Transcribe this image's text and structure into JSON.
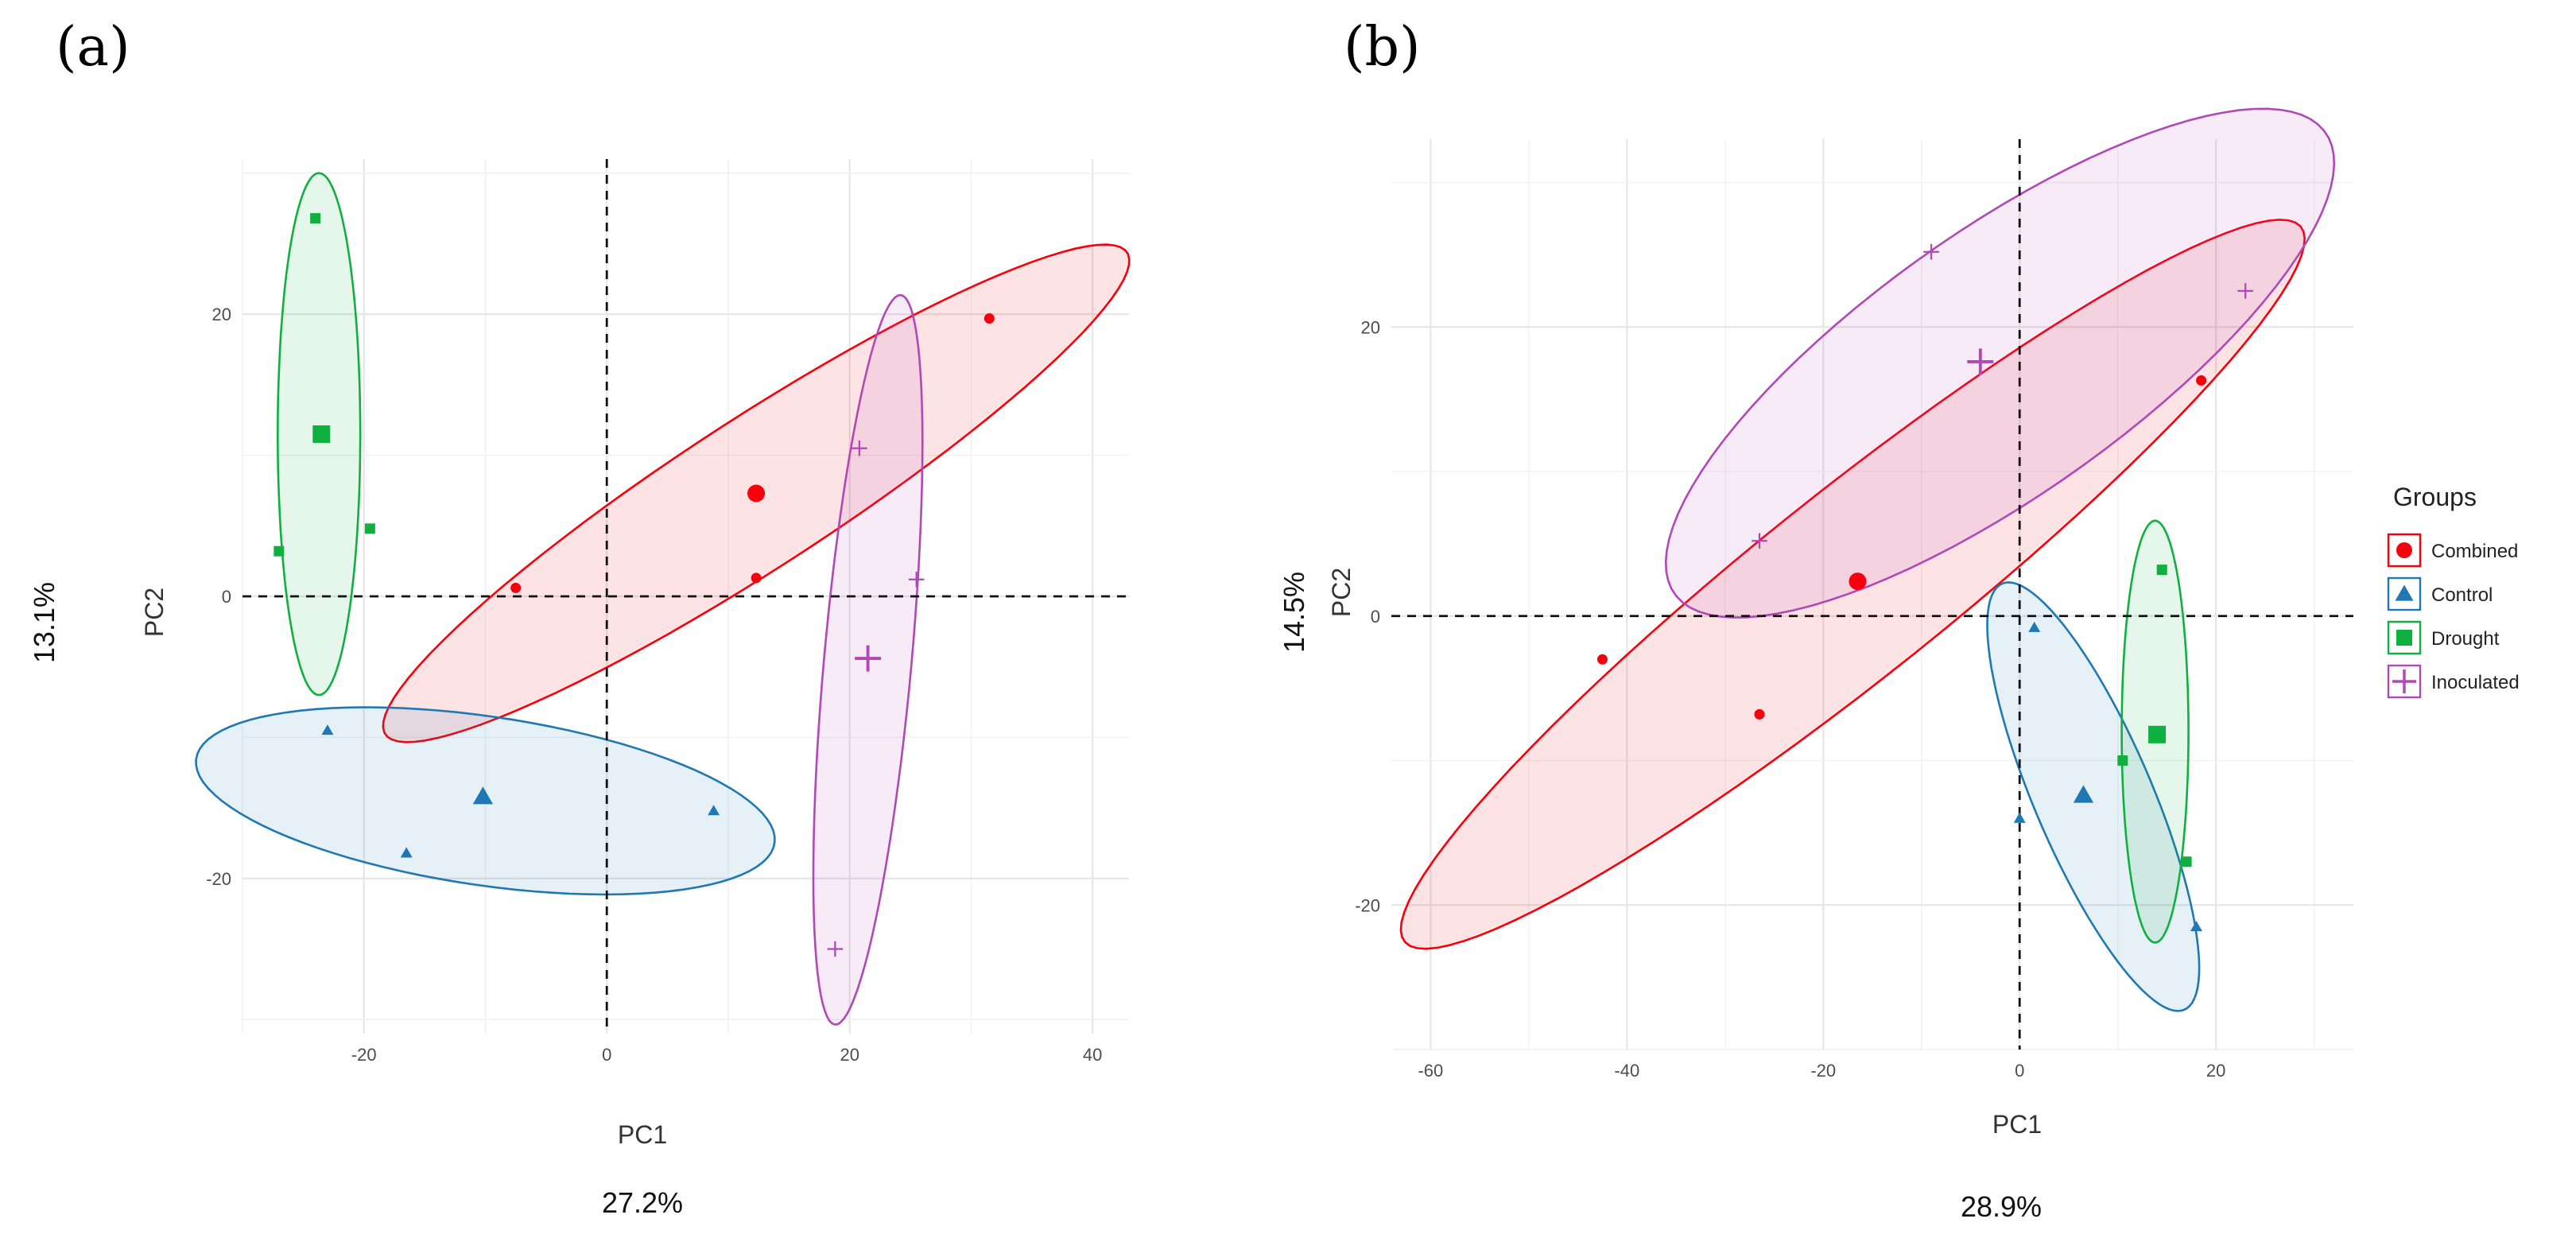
{
  "legend": {
    "title": "Groups",
    "entries": [
      {
        "label": "Combined",
        "color": "#f8000b",
        "shape": "circle"
      },
      {
        "label": "Control",
        "color": "#1f78b4",
        "shape": "triangle"
      },
      {
        "label": "Drought",
        "color": "#10b040",
        "shape": "square"
      },
      {
        "label": "Inoculated",
        "color": "#b048b5",
        "shape": "plus"
      }
    ]
  },
  "chart_data": [
    {
      "panel_label": "(a)",
      "type": "scatter",
      "xlabel": "PC1",
      "ylabel": "PC2",
      "x_variance_label": "27.2%",
      "y_variance_label": "13.1%",
      "xlim": [
        -30,
        43
      ],
      "ylim": [
        -31,
        31
      ],
      "xticks": [
        -20,
        0,
        20,
        40
      ],
      "yticks": [
        -20,
        0,
        20
      ],
      "reference_lines": {
        "x": 0,
        "y": 0,
        "style": "dashed"
      },
      "groups": [
        {
          "name": "Combined",
          "centroid": [
            12.3,
            7.3
          ],
          "points": [
            [
              -7.5,
              0.6
            ],
            [
              12.3,
              1.3
            ],
            [
              31.5,
              19.7
            ]
          ],
          "ellipse": {
            "center": [
              12.3,
              7.3
            ],
            "semi_major": 35,
            "semi_minor": 5.5,
            "angle_deg": 29
          }
        },
        {
          "name": "Control",
          "centroid": [
            -10.2,
            -14.2
          ],
          "points": [
            [
              -23.0,
              -9.5
            ],
            [
              -16.5,
              -18.2
            ],
            [
              8.8,
              -15.2
            ]
          ],
          "ellipse": {
            "center": [
              -10.0,
              -14.5
            ],
            "semi_major": 24,
            "semi_minor": 6,
            "angle_deg": -7
          }
        },
        {
          "name": "Drought",
          "centroid": [
            -23.5,
            11.5
          ],
          "points": [
            [
              -24.0,
              26.8
            ],
            [
              -27.0,
              3.2
            ],
            [
              -19.5,
              4.8
            ]
          ],
          "ellipse": {
            "center": [
              -23.7,
              11.5
            ],
            "semi_major": 18.5,
            "semi_minor": 3.4,
            "angle_deg": 90
          }
        },
        {
          "name": "Inoculated",
          "centroid": [
            21.5,
            -4.4
          ],
          "points": [
            [
              20.8,
              10.5
            ],
            [
              25.5,
              1.2
            ],
            [
              18.8,
              -25.0
            ]
          ],
          "ellipse": {
            "center": [
              21.5,
              -4.5
            ],
            "semi_major": 26,
            "semi_minor": 3.6,
            "angle_deg": 84
          }
        }
      ]
    },
    {
      "panel_label": "(b)",
      "type": "scatter",
      "xlabel": "PC1",
      "ylabel": "PC2",
      "x_variance_label": "28.9%",
      "y_variance_label": "14.5%",
      "xlim": [
        -64,
        34
      ],
      "ylim": [
        -30,
        33
      ],
      "xticks": [
        -60,
        -40,
        -20,
        0,
        20
      ],
      "yticks": [
        -20,
        0,
        20
      ],
      "reference_lines": {
        "x": 0,
        "y": 0,
        "style": "dashed"
      },
      "groups": [
        {
          "name": "Combined",
          "centroid": [
            -16.5,
            2.4
          ],
          "points": [
            [
              -42.5,
              -3.0
            ],
            [
              -26.5,
              -6.8
            ],
            [
              18.5,
              16.3
            ]
          ],
          "ellipse": {
            "center": [
              -17,
              2.2
            ],
            "semi_major": 52,
            "semi_minor": 7.2,
            "angle_deg": 28
          }
        },
        {
          "name": "Control",
          "centroid": [
            6.5,
            -12.4
          ],
          "points": [
            [
              1.5,
              -0.8
            ],
            [
              0.0,
              -14.0
            ],
            [
              18.0,
              -21.5
            ]
          ],
          "ellipse": {
            "center": [
              7.5,
              -12.5
            ],
            "semi_major": 17.5,
            "semi_minor": 5.5,
            "angle_deg": -56
          }
        },
        {
          "name": "Drought",
          "centroid": [
            14.0,
            -8.2
          ],
          "points": [
            [
              14.5,
              3.2
            ],
            [
              10.5,
              -10.0
            ],
            [
              17.0,
              -17.0
            ]
          ],
          "ellipse": {
            "center": [
              13.8,
              -8.0
            ],
            "semi_major": 14.6,
            "semi_minor": 3.4,
            "angle_deg": 90
          }
        },
        {
          "name": "Inoculated",
          "centroid": [
            -4.0,
            17.6
          ],
          "points": [
            [
              -9.0,
              25.2
            ],
            [
              -26.5,
              5.2
            ],
            [
              23.0,
              22.5
            ]
          ],
          "ellipse": {
            "center": [
              -2,
              17.5
            ],
            "semi_major": 37,
            "semi_minor": 10,
            "angle_deg": 24
          }
        }
      ]
    }
  ]
}
